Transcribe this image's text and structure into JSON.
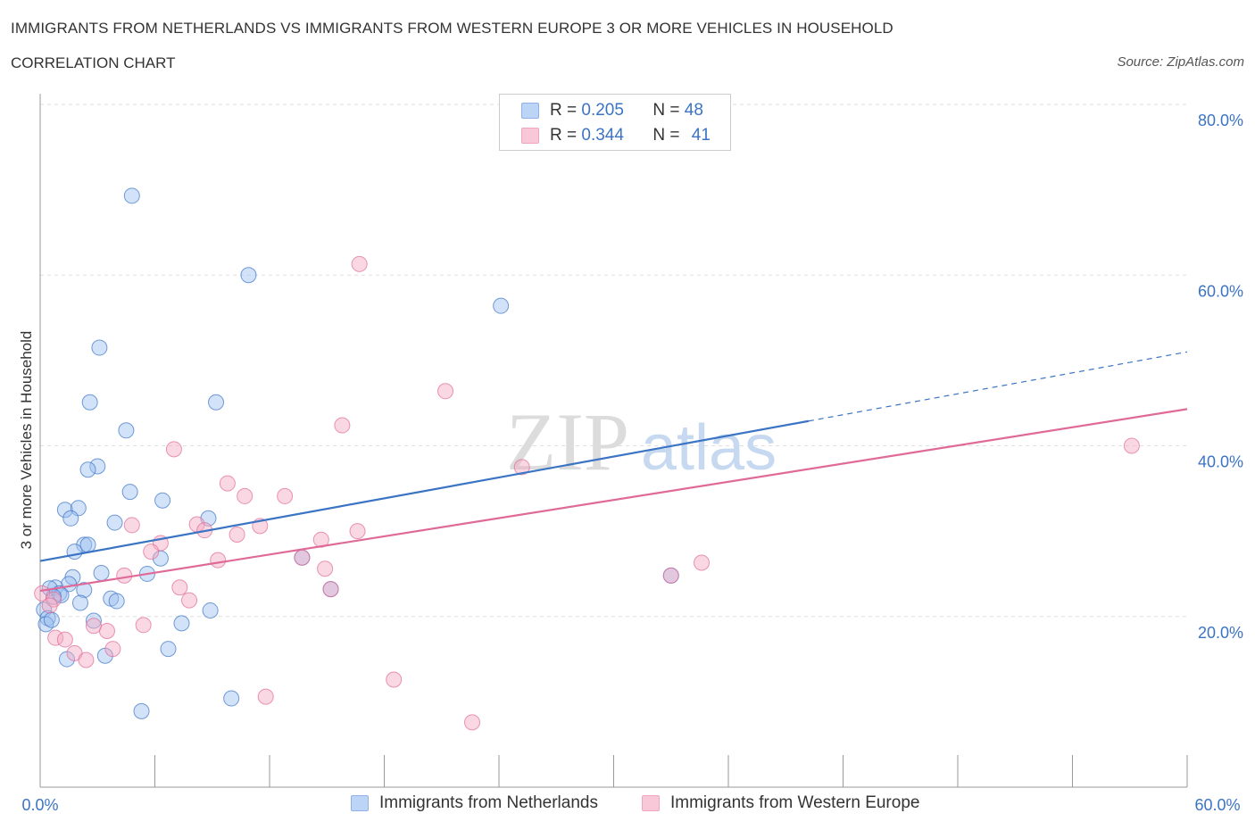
{
  "title": "IMMIGRANTS FROM NETHERLANDS VS IMMIGRANTS FROM WESTERN EUROPE 3 OR MORE VEHICLES IN HOUSEHOLD",
  "subtitle": "CORRELATION CHART",
  "source": "Source: ZipAtlas.com",
  "watermark": {
    "zip": "ZIP",
    "atlas": "atlas"
  },
  "legend": {
    "r_label": "R =",
    "n_label": "N =",
    "rows": [
      {
        "r": "0.205",
        "n": "48",
        "color": "#9bbfef"
      },
      {
        "r": "0.344",
        "n": "41",
        "color": "#f4a8c2"
      }
    ]
  },
  "chart_data": {
    "type": "scatter",
    "title": "",
    "xlabel": "",
    "ylabel": "3 or more Vehicles in Household",
    "xlim": [
      0,
      60
    ],
    "ylim": [
      0,
      80
    ],
    "x_ticks": [
      0,
      6,
      12,
      18,
      24,
      30,
      36,
      42,
      48,
      54,
      60
    ],
    "x_tick_labels": {
      "first": "0.0%",
      "last": "60.0%"
    },
    "y_ticks": [
      20,
      40,
      60,
      80
    ],
    "y_tick_labels": [
      "20.0%",
      "40.0%",
      "60.0%",
      "80.0%"
    ],
    "grid": true,
    "series": [
      {
        "name": "Immigrants from Netherlands",
        "color": "#3b74c4",
        "fill": "#9bbfef",
        "trend": {
          "x0": 0,
          "y0": 26.5,
          "x1": 40.2,
          "y1": 42.9,
          "dash_to_x": 60,
          "dash_to_y": 51.0
        },
        "points": [
          [
            4.8,
            69.3
          ],
          [
            10.9,
            60.0
          ],
          [
            3.1,
            51.5
          ],
          [
            2.6,
            45.1
          ],
          [
            9.2,
            45.1
          ],
          [
            4.5,
            41.8
          ],
          [
            3.0,
            37.6
          ],
          [
            2.5,
            37.2
          ],
          [
            4.7,
            34.6
          ],
          [
            6.4,
            33.6
          ],
          [
            1.3,
            32.5
          ],
          [
            2.0,
            32.7
          ],
          [
            1.6,
            31.5
          ],
          [
            3.9,
            31.0
          ],
          [
            8.8,
            31.5
          ],
          [
            2.3,
            28.4
          ],
          [
            2.5,
            28.4
          ],
          [
            1.8,
            27.6
          ],
          [
            6.3,
            26.8
          ],
          [
            3.2,
            25.1
          ],
          [
            5.6,
            25.0
          ],
          [
            1.7,
            24.6
          ],
          [
            1.5,
            23.8
          ],
          [
            0.8,
            23.4
          ],
          [
            0.5,
            23.3
          ],
          [
            1.0,
            22.7
          ],
          [
            2.3,
            23.1
          ],
          [
            1.1,
            22.5
          ],
          [
            0.7,
            22.3
          ],
          [
            3.7,
            22.1
          ],
          [
            4.0,
            21.8
          ],
          [
            2.1,
            21.6
          ],
          [
            0.2,
            20.8
          ],
          [
            8.9,
            20.7
          ],
          [
            0.4,
            19.8
          ],
          [
            2.8,
            19.5
          ],
          [
            0.3,
            19.1
          ],
          [
            7.4,
            19.2
          ],
          [
            6.7,
            16.2
          ],
          [
            1.4,
            15.0
          ],
          [
            3.4,
            15.4
          ],
          [
            10.0,
            10.4
          ],
          [
            5.3,
            8.9
          ],
          [
            24.1,
            56.4
          ],
          [
            13.7,
            26.9
          ],
          [
            15.2,
            23.2
          ],
          [
            33.0,
            24.8
          ],
          [
            0.6,
            19.6
          ]
        ]
      },
      {
        "name": "Immigrants from Western Europe",
        "color": "#e06a97",
        "fill": "#f4a8c2",
        "trend": {
          "x0": 0,
          "y0": 23.0,
          "x1": 60,
          "y1": 44.3
        },
        "points": [
          [
            16.7,
            61.3
          ],
          [
            21.2,
            46.4
          ],
          [
            15.8,
            42.4
          ],
          [
            7.0,
            39.6
          ],
          [
            25.2,
            37.5
          ],
          [
            9.8,
            35.6
          ],
          [
            10.7,
            34.1
          ],
          [
            12.8,
            34.1
          ],
          [
            8.2,
            30.8
          ],
          [
            8.6,
            30.1
          ],
          [
            4.8,
            30.7
          ],
          [
            11.5,
            30.6
          ],
          [
            10.3,
            29.6
          ],
          [
            16.6,
            30.0
          ],
          [
            14.7,
            29.0
          ],
          [
            6.3,
            28.6
          ],
          [
            5.8,
            27.6
          ],
          [
            9.3,
            26.6
          ],
          [
            13.7,
            26.9
          ],
          [
            14.9,
            25.6
          ],
          [
            4.4,
            24.8
          ],
          [
            34.6,
            26.3
          ],
          [
            33.0,
            24.8
          ],
          [
            7.3,
            23.4
          ],
          [
            15.2,
            23.2
          ],
          [
            0.1,
            22.7
          ],
          [
            0.7,
            22.0
          ],
          [
            0.5,
            21.3
          ],
          [
            7.8,
            21.9
          ],
          [
            5.4,
            19.0
          ],
          [
            3.5,
            18.3
          ],
          [
            2.8,
            18.9
          ],
          [
            0.8,
            17.5
          ],
          [
            1.3,
            17.3
          ],
          [
            3.8,
            16.2
          ],
          [
            1.8,
            15.7
          ],
          [
            2.4,
            14.9
          ],
          [
            18.5,
            12.6
          ],
          [
            11.8,
            10.6
          ],
          [
            22.6,
            7.6
          ],
          [
            57.1,
            40.0
          ]
        ]
      }
    ]
  }
}
